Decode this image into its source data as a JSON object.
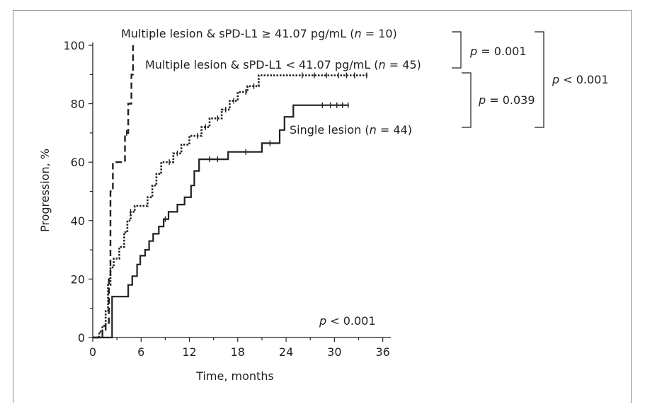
{
  "chart_data": {
    "type": "line",
    "chart_kind": "kaplan-meier step curves with censor ticks",
    "xlabel": "Time, months",
    "ylabel": "Progression, %",
    "xlim": [
      0,
      37
    ],
    "ylim": [
      0,
      100
    ],
    "xticks": [
      0,
      6,
      12,
      18,
      24,
      30,
      36
    ],
    "yticks": [
      0,
      20,
      40,
      60,
      80,
      100
    ],
    "grid": false,
    "series": [
      {
        "name_parts": [
          "Multiple lesion & sPD-L1 ≥ 41.07 pg/mL (",
          "n",
          " = 10)"
        ],
        "line_style": "dashed",
        "steps": [
          [
            0,
            0
          ],
          [
            1.2,
            0
          ],
          [
            1.2,
            2
          ],
          [
            1.6,
            2
          ],
          [
            1.6,
            5
          ],
          [
            2,
            5
          ],
          [
            2,
            20
          ],
          [
            2.2,
            20
          ],
          [
            2.2,
            50
          ],
          [
            2.5,
            50
          ],
          [
            2.5,
            60
          ],
          [
            4,
            60
          ],
          [
            4,
            70
          ],
          [
            4.4,
            70
          ],
          [
            4.4,
            80
          ],
          [
            4.8,
            80
          ],
          [
            4.8,
            90
          ],
          [
            5,
            90
          ],
          [
            5,
            100
          ]
        ],
        "censored": [
          [
            4.2,
            70
          ]
        ]
      },
      {
        "name_parts": [
          "Multiple lesion & sPD-L1 < 41.07 pg/mL (",
          "n",
          " = 45)"
        ],
        "line_style": "dotted",
        "steps": [
          [
            0,
            0
          ],
          [
            0.8,
            0
          ],
          [
            0.8,
            2
          ],
          [
            1.2,
            2
          ],
          [
            1.2,
            4
          ],
          [
            1.6,
            4
          ],
          [
            1.6,
            9
          ],
          [
            1.9,
            9
          ],
          [
            1.9,
            18
          ],
          [
            2.2,
            18
          ],
          [
            2.2,
            24
          ],
          [
            2.6,
            24
          ],
          [
            2.6,
            27
          ],
          [
            3.3,
            27
          ],
          [
            3.3,
            31
          ],
          [
            3.9,
            31
          ],
          [
            3.9,
            36
          ],
          [
            4.3,
            36
          ],
          [
            4.3,
            40
          ],
          [
            4.7,
            40
          ],
          [
            4.7,
            43
          ],
          [
            5.2,
            43
          ],
          [
            5.2,
            45
          ],
          [
            6.8,
            45
          ],
          [
            6.8,
            48
          ],
          [
            7.4,
            48
          ],
          [
            7.4,
            52
          ],
          [
            7.9,
            52
          ],
          [
            7.9,
            56
          ],
          [
            8.5,
            56
          ],
          [
            8.5,
            60
          ],
          [
            10,
            60
          ],
          [
            10,
            63
          ],
          [
            11,
            63
          ],
          [
            11,
            66
          ],
          [
            12,
            66
          ],
          [
            12,
            69
          ],
          [
            13.5,
            69
          ],
          [
            13.5,
            72
          ],
          [
            14.5,
            72
          ],
          [
            14.5,
            75
          ],
          [
            16,
            75
          ],
          [
            16,
            78
          ],
          [
            17,
            78
          ],
          [
            17,
            81
          ],
          [
            18,
            81
          ],
          [
            18,
            84
          ],
          [
            19.2,
            84
          ],
          [
            19.2,
            86
          ],
          [
            20.6,
            86
          ],
          [
            20.6,
            89.7
          ],
          [
            34.2,
            89.7
          ]
        ],
        "censored": [
          [
            4.7,
            43
          ],
          [
            9.5,
            60
          ],
          [
            10.5,
            63
          ],
          [
            13,
            69
          ],
          [
            14,
            72
          ],
          [
            15.5,
            75
          ],
          [
            16.5,
            78
          ],
          [
            17.5,
            81
          ],
          [
            19,
            84
          ],
          [
            20,
            86
          ],
          [
            26,
            89.7
          ],
          [
            27.5,
            89.7
          ],
          [
            29,
            89.7
          ],
          [
            30.5,
            89.7
          ],
          [
            31.5,
            89.7
          ],
          [
            32.5,
            89.7
          ],
          [
            34,
            89.7
          ]
        ]
      },
      {
        "name_parts": [
          "Single lesion (",
          "n",
          " = 44)"
        ],
        "line_style": "solid",
        "steps": [
          [
            0,
            0
          ],
          [
            2.4,
            0
          ],
          [
            2.4,
            14
          ],
          [
            4.4,
            14
          ],
          [
            4.4,
            18
          ],
          [
            4.9,
            18
          ],
          [
            4.9,
            21
          ],
          [
            5.5,
            21
          ],
          [
            5.5,
            25
          ],
          [
            5.9,
            25
          ],
          [
            5.9,
            28
          ],
          [
            6.5,
            28
          ],
          [
            6.5,
            30
          ],
          [
            7,
            30
          ],
          [
            7,
            33
          ],
          [
            7.5,
            33
          ],
          [
            7.5,
            35.5
          ],
          [
            8.2,
            35.5
          ],
          [
            8.2,
            38
          ],
          [
            8.8,
            38
          ],
          [
            8.8,
            40.5
          ],
          [
            9.4,
            40.5
          ],
          [
            9.4,
            43
          ],
          [
            10.5,
            43
          ],
          [
            10.5,
            45.5
          ],
          [
            11.4,
            45.5
          ],
          [
            11.4,
            48
          ],
          [
            12.2,
            48
          ],
          [
            12.2,
            52
          ],
          [
            12.6,
            52
          ],
          [
            12.6,
            57
          ],
          [
            13.2,
            57
          ],
          [
            13.2,
            61
          ],
          [
            16.8,
            61
          ],
          [
            16.8,
            63.5
          ],
          [
            21,
            63.5
          ],
          [
            21,
            66.5
          ],
          [
            23.2,
            66.5
          ],
          [
            23.2,
            71
          ],
          [
            23.8,
            71
          ],
          [
            23.8,
            75.5
          ],
          [
            24.9,
            75.5
          ],
          [
            24.9,
            79.5
          ],
          [
            31.8,
            79.5
          ]
        ],
        "censored": [
          [
            9,
            40.5
          ],
          [
            14.5,
            61
          ],
          [
            15.5,
            61
          ],
          [
            19,
            63.5
          ],
          [
            22,
            66.5
          ],
          [
            28.5,
            79.5
          ],
          [
            29.5,
            79.5
          ],
          [
            30.3,
            79.5
          ],
          [
            31,
            79.5
          ],
          [
            31.7,
            79.5
          ]
        ]
      }
    ],
    "annotations": [
      {
        "parts": [
          "p",
          " = 0.001"
        ]
      },
      {
        "parts": [
          "p",
          " = 0.039"
        ]
      },
      {
        "parts": [
          "p",
          " < 0.001"
        ]
      },
      {
        "parts": [
          "p",
          " < 0.001"
        ]
      }
    ]
  }
}
